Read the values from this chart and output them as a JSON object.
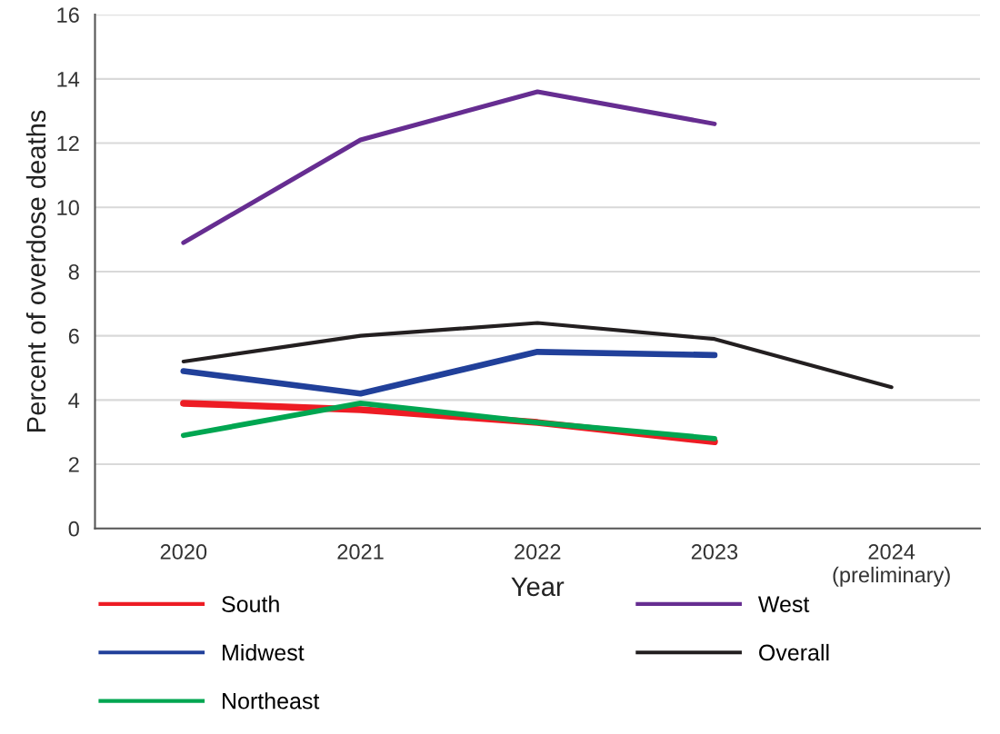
{
  "chart_data": {
    "type": "line",
    "xlabel": "Year",
    "ylabel": "Percent of overdose deaths",
    "categories": [
      "2020",
      "2021",
      "2022",
      "2023",
      "2024\n(preliminary)"
    ],
    "series": [
      {
        "name": "South",
        "color": "#ed1c24",
        "values": [
          3.9,
          3.7,
          3.3,
          2.7,
          null
        ]
      },
      {
        "name": "Midwest",
        "color": "#21409a",
        "values": [
          4.9,
          4.2,
          5.5,
          5.4,
          null
        ]
      },
      {
        "name": "Northeast",
        "color": "#00a651",
        "values": [
          2.9,
          3.9,
          3.3,
          2.8,
          null
        ]
      },
      {
        "name": "West",
        "color": "#662d91",
        "values": [
          8.9,
          12.1,
          13.6,
          12.6,
          null
        ]
      },
      {
        "name": "Overall",
        "color": "#231f20",
        "values": [
          5.2,
          6.0,
          6.4,
          5.9,
          4.4
        ]
      }
    ],
    "ylim": [
      0,
      16
    ],
    "yticks": [
      0,
      2,
      4,
      6,
      8,
      10,
      12,
      14,
      16
    ],
    "grid": "y",
    "legend": "bottom",
    "marker": "none",
    "line_style": "solid"
  }
}
